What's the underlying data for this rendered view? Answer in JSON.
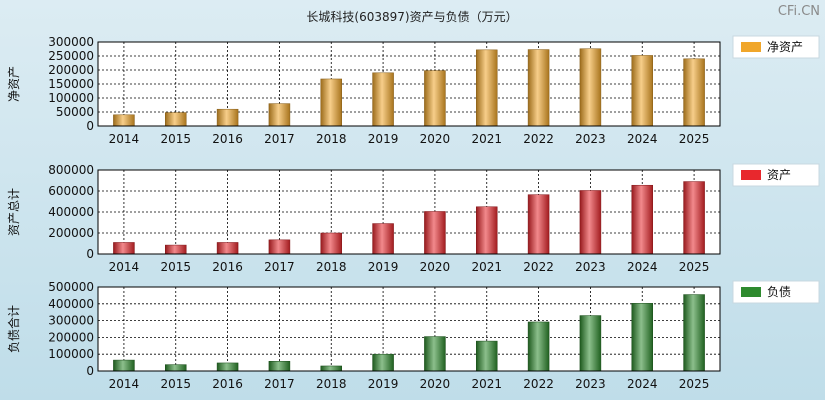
{
  "title": "长城科技(603897)资产与负债（万元）",
  "watermark": "CFi.CN",
  "chart_data": [
    {
      "type": "bar",
      "ylabel": "净资产",
      "legend": "净资产",
      "color": "#f0a62a",
      "categories": [
        "2014",
        "2015",
        "2016",
        "2017",
        "2018",
        "2019",
        "2020",
        "2021",
        "2022",
        "2023",
        "2024",
        "2025"
      ],
      "values": [
        40000,
        48000,
        60000,
        80000,
        168000,
        190000,
        198000,
        272000,
        273000,
        276000,
        252000,
        240000
      ],
      "ylim": [
        0,
        300000
      ],
      "yticks": [
        "0",
        "50000",
        "100000",
        "150000",
        "200000",
        "250000",
        "300000"
      ],
      "grid": true,
      "legend_position": "right"
    },
    {
      "type": "bar",
      "ylabel": "资产总计",
      "legend": "资产",
      "color": "#e8282d",
      "categories": [
        "2014",
        "2015",
        "2016",
        "2017",
        "2018",
        "2019",
        "2020",
        "2021",
        "2022",
        "2023",
        "2024",
        "2025"
      ],
      "values": [
        110000,
        85000,
        110000,
        135000,
        200000,
        290000,
        405000,
        450000,
        565000,
        605000,
        655000,
        690000
      ],
      "ylim": [
        0,
        800000
      ],
      "yticks": [
        "0",
        "200000",
        "400000",
        "600000",
        "800000"
      ],
      "grid": true,
      "legend_position": "right"
    },
    {
      "type": "bar",
      "ylabel": "负债合计",
      "legend": "负债",
      "color": "#2e8a2e",
      "categories": [
        "2014",
        "2015",
        "2016",
        "2017",
        "2018",
        "2019",
        "2020",
        "2021",
        "2022",
        "2023",
        "2024",
        "2025"
      ],
      "values": [
        65000,
        38000,
        48000,
        58000,
        30000,
        100000,
        205000,
        178000,
        292000,
        330000,
        403000,
        455000
      ],
      "ylim": [
        0,
        500000
      ],
      "yticks": [
        "0",
        "100000",
        "200000",
        "300000",
        "400000",
        "500000"
      ],
      "grid": true,
      "legend_position": "right"
    }
  ]
}
